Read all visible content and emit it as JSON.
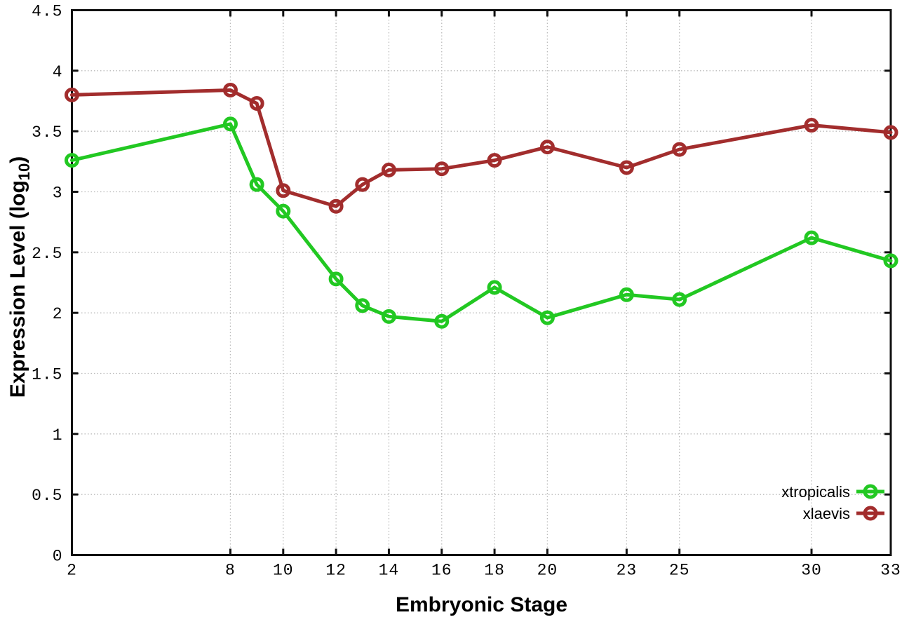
{
  "chart_data": {
    "type": "line",
    "title": "",
    "xlabel": "Embryonic Stage",
    "ylabel": "Expression Level (log10)",
    "ylabel_parts": {
      "pre": "Expression Level (log",
      "sub": "10",
      "post": ")"
    },
    "x": [
      2,
      8,
      9,
      10,
      12,
      13,
      14,
      16,
      18,
      20,
      23,
      25,
      30,
      33
    ],
    "series": [
      {
        "name": "xtropicalis",
        "color": "#22c822",
        "values": [
          3.26,
          3.56,
          3.06,
          2.84,
          2.28,
          2.06,
          1.97,
          1.93,
          2.21,
          1.96,
          2.15,
          2.11,
          2.62,
          2.43
        ]
      },
      {
        "name": "xlaevis",
        "color": "#a22d2d",
        "values": [
          3.8,
          3.84,
          3.73,
          3.01,
          2.88,
          3.06,
          3.18,
          3.19,
          3.26,
          3.37,
          3.2,
          3.35,
          3.55,
          3.49
        ]
      }
    ],
    "xticks": [
      2,
      8,
      10,
      12,
      14,
      16,
      18,
      20,
      23,
      25,
      30,
      33
    ],
    "yticks": [
      "0",
      "0.5",
      "1",
      "1.5",
      "2",
      "2.5",
      "3",
      "3.5",
      "4",
      "4.5"
    ],
    "xlim": [
      2,
      33
    ],
    "ylim": [
      0,
      4.5
    ],
    "grid": true,
    "grid_style": "dotted",
    "grid_color": "#bbbbbb",
    "axis_color": "#111111",
    "text_color": "#000000",
    "background_color": "#ffffff",
    "marker": "open-circle",
    "legend_position": "bottom-right",
    "legend_entries": [
      "xtropicalis",
      "xlaevis"
    ]
  }
}
